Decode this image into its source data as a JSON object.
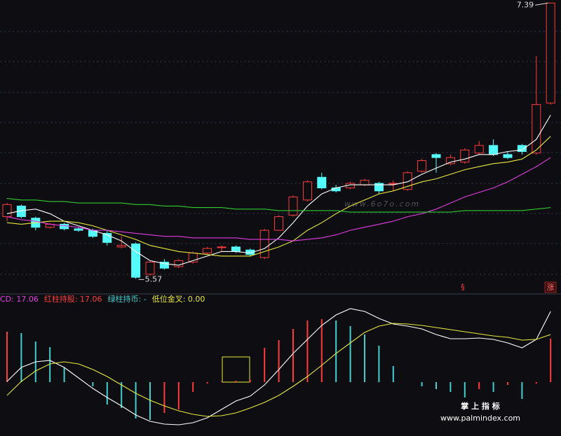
{
  "chart_data": [
    {
      "type": "candlestick",
      "open": [
        5.98,
        6.05,
        5.97,
        5.91,
        5.93,
        5.9,
        5.89,
        5.87,
        5.78,
        5.8,
        5.6,
        5.68,
        5.65,
        5.68,
        5.74,
        5.78,
        5.78,
        5.76,
        5.71,
        5.89,
        5.99,
        6.09,
        6.24,
        6.17,
        6.17,
        6.19,
        6.2,
        6.2,
        6.16,
        6.28,
        6.39,
        6.33,
        6.34,
        6.4,
        6.45,
        6.39,
        6.45,
        6.4,
        6.73
      ],
      "high": [
        6.07,
        6.06,
        5.98,
        5.94,
        5.94,
        5.91,
        5.9,
        5.89,
        5.85,
        5.81,
        5.69,
        5.7,
        5.7,
        5.75,
        5.78,
        5.79,
        5.79,
        5.77,
        5.9,
        5.99,
        6.12,
        6.22,
        6.27,
        6.19,
        6.21,
        6.23,
        6.21,
        6.22,
        6.28,
        6.36,
        6.4,
        6.39,
        6.43,
        6.48,
        6.49,
        6.41,
        6.46,
        7.04,
        7.39
      ],
      "low": [
        5.95,
        5.97,
        5.89,
        5.9,
        5.89,
        5.88,
        5.84,
        5.79,
        5.77,
        5.57,
        5.59,
        5.63,
        5.64,
        5.67,
        5.73,
        5.75,
        5.74,
        5.72,
        5.7,
        5.89,
        5.98,
        6.08,
        6.16,
        6.14,
        6.16,
        6.18,
        6.13,
        6.15,
        6.15,
        6.27,
        6.27,
        6.32,
        6.33,
        6.39,
        6.38,
        6.36,
        6.39,
        6.39,
        6.72
      ],
      "close": [
        6.06,
        5.98,
        5.91,
        5.93,
        5.9,
        5.89,
        5.85,
        5.81,
        5.79,
        5.58,
        5.68,
        5.64,
        5.69,
        5.74,
        5.77,
        5.78,
        5.75,
        5.73,
        5.89,
        5.98,
        6.11,
        6.21,
        6.17,
        6.15,
        6.2,
        6.22,
        6.15,
        6.2,
        6.27,
        6.35,
        6.37,
        6.37,
        6.42,
        6.45,
        6.39,
        6.37,
        6.41,
        6.72,
        7.39
      ],
      "up_color": "#ff3b3b",
      "down_color": "#54fcfc",
      "ylim": [
        5.47,
        7.41
      ],
      "lines": [
        {
          "color": "#ffffff",
          "values": [
            6.0,
            6.02,
            6.03,
            6.0,
            5.95,
            5.92,
            5.89,
            5.86,
            5.82,
            5.75,
            5.69,
            5.67,
            5.66,
            5.69,
            5.72,
            5.75,
            5.75,
            5.74,
            5.77,
            5.84,
            5.94,
            6.05,
            6.13,
            6.17,
            6.19,
            6.19,
            6.19,
            6.19,
            6.21,
            6.26,
            6.3,
            6.34,
            6.36,
            6.39,
            6.39,
            6.41,
            6.42,
            6.49,
            6.65
          ]
        },
        {
          "color": "#e8e83a",
          "values": [
            5.94,
            5.93,
            5.94,
            5.95,
            5.95,
            5.94,
            5.92,
            5.89,
            5.86,
            5.83,
            5.79,
            5.77,
            5.75,
            5.74,
            5.73,
            5.72,
            5.72,
            5.72,
            5.75,
            5.78,
            5.82,
            5.89,
            5.94,
            6.0,
            6.05,
            6.09,
            6.13,
            6.15,
            6.18,
            6.21,
            6.23,
            6.26,
            6.29,
            6.31,
            6.33,
            6.34,
            6.36,
            6.42,
            6.51
          ]
        },
        {
          "color": "#e33ae3",
          "values": [
            5.98,
            5.96,
            5.95,
            5.93,
            5.92,
            5.91,
            5.89,
            5.89,
            5.88,
            5.87,
            5.86,
            5.85,
            5.85,
            5.84,
            5.84,
            5.84,
            5.84,
            5.83,
            5.83,
            5.83,
            5.82,
            5.83,
            5.84,
            5.86,
            5.89,
            5.91,
            5.93,
            5.95,
            5.98,
            6.0,
            6.03,
            6.07,
            6.11,
            6.14,
            6.17,
            6.21,
            6.26,
            6.31,
            6.37
          ]
        },
        {
          "color": "#2ecc2e",
          "values": [
            6.1,
            6.09,
            6.09,
            6.08,
            6.08,
            6.07,
            6.07,
            6.07,
            6.07,
            6.06,
            6.06,
            6.05,
            6.05,
            6.04,
            6.04,
            6.04,
            6.03,
            6.03,
            6.03,
            6.02,
            6.02,
            6.02,
            6.02,
            6.02,
            6.01,
            6.01,
            6.01,
            6.01,
            6.01,
            6.01,
            6.01,
            6.01,
            6.02,
            6.02,
            6.02,
            6.02,
            6.02,
            6.03,
            6.04
          ]
        }
      ],
      "annotations": [
        {
          "text": "7.39"
        },
        {
          "text": "5.57"
        }
      ],
      "watermark": "www.6o7o.com"
    },
    {
      "type": "macd",
      "legend": [
        {
          "text": "CD: 17.06",
          "color": "#e33ae3"
        },
        {
          "text": "红柱持股: 17.06",
          "color": "#ff3b3b"
        },
        {
          "text": "绿柱持币: -",
          "color": "#3fd0d0"
        },
        {
          "text": "低位金叉: 0.00",
          "color": "#e8e83a"
        }
      ],
      "bars": [
        72,
        70,
        58,
        50,
        21,
        0,
        -6,
        -32,
        -37,
        -52,
        -54,
        -44,
        -39,
        -14,
        -2,
        1,
        2,
        3,
        49,
        60,
        76,
        88,
        90,
        88,
        80,
        68,
        52,
        23,
        0,
        -6,
        -10,
        -14,
        -22,
        -10,
        -14,
        -4,
        -24,
        -2,
        62
      ],
      "up_color": "#ff3b3b",
      "down_color": "#3fd0d0",
      "lines": [
        {
          "color": "#ffffff",
          "values": [
            1,
            21,
            29,
            31,
            21,
            6,
            -9,
            -22,
            -34,
            -47,
            -56,
            -60,
            -61,
            -58,
            -51,
            -39,
            -27,
            -20,
            -4,
            18,
            41,
            61,
            81,
            96,
            105,
            101,
            91,
            83,
            80,
            76,
            68,
            62,
            62,
            63,
            61,
            56,
            49,
            61,
            101
          ]
        },
        {
          "color": "#e8e83a",
          "values": [
            -19,
            1,
            16,
            26,
            29,
            26,
            18,
            8,
            -4,
            -16,
            -26,
            -34,
            -41,
            -46,
            -49,
            -48,
            -44,
            -37,
            -29,
            -19,
            -6,
            8,
            24,
            41,
            56,
            71,
            80,
            84,
            83,
            81,
            78,
            75,
            72,
            69,
            66,
            64,
            60,
            61,
            68
          ]
        }
      ],
      "ylim": [
        -77,
        126
      ]
    }
  ],
  "markers": [
    "§",
    "涨"
  ],
  "footer": {
    "title": "掌 上 指 标",
    "url": "www.palmindex.com"
  }
}
